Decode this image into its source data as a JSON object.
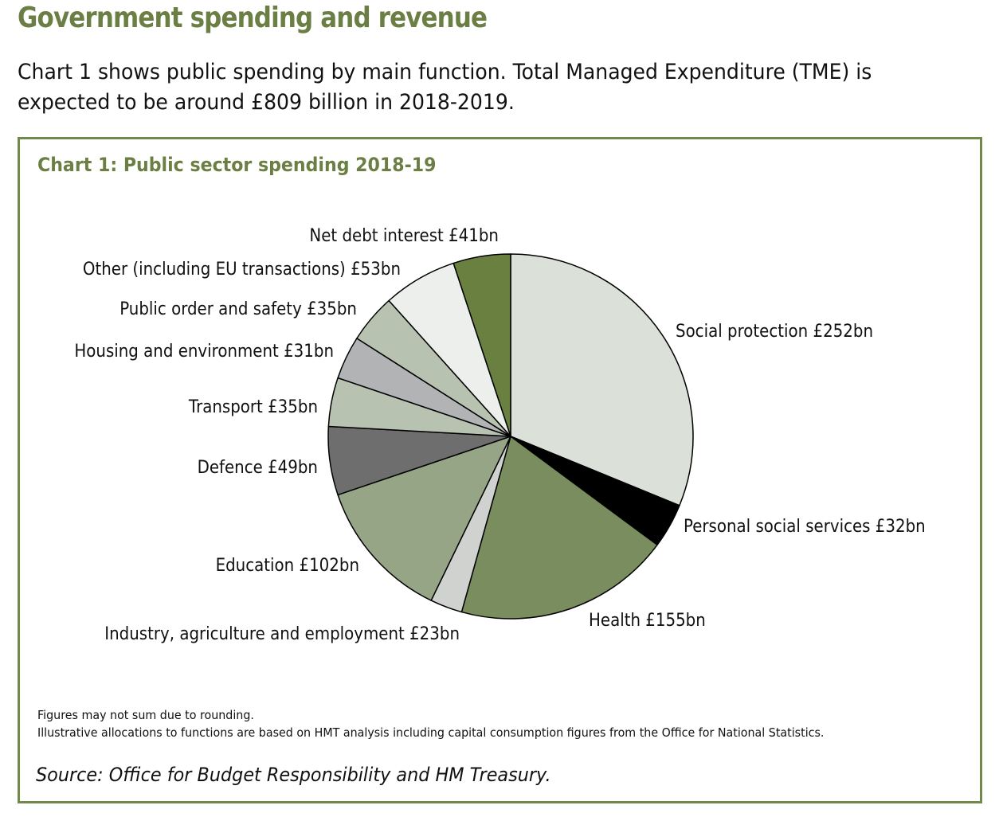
{
  "page": {
    "heading": "Government spending and revenue",
    "intro": "Chart 1 shows public spending by main function. Total Managed Expenditure (TME) is expected to be around £809 billion in 2018-2019."
  },
  "notes": {
    "rounding": "Figures may not sum due to rounding.",
    "allocations": "Illustrative allocations to functions are based on HMT analysis including capital consumption figures from the Office for National Statistics.",
    "source": "Source: Office for Budget Responsibility and HM Treasury."
  },
  "colors": {
    "accent": "#6b7f44",
    "border": "#718a4c"
  },
  "chart_data": {
    "type": "pie",
    "title": "Chart 1: Public sector spending 2018-19",
    "unit": "£bn",
    "start_angle": "12 o'clock",
    "direction": "clockwise",
    "slices": [
      {
        "name": "Social protection",
        "value": 252,
        "label": "Social protection £252bn",
        "color": "#dbe0d8"
      },
      {
        "name": "Personal social services",
        "value": 32,
        "label": "Personal social services £32bn",
        "color": "#000000"
      },
      {
        "name": "Health",
        "value": 155,
        "label": "Health £155bn",
        "color": "#7a8d5e"
      },
      {
        "name": "Industry, agriculture and employment",
        "value": 23,
        "label": "Industry, agriculture and employment £23bn",
        "color": "#d0d2d0"
      },
      {
        "name": "Education",
        "value": 102,
        "label": "Education £102bn",
        "color": "#96a585"
      },
      {
        "name": "Defence",
        "value": 49,
        "label": "Defence £49bn",
        "color": "#6e6e6e"
      },
      {
        "name": "Transport",
        "value": 35,
        "label": "Transport £35bn",
        "color": "#b8c2b0"
      },
      {
        "name": "Housing and environment",
        "value": 31,
        "label": "Housing and environment £31bn",
        "color": "#b2b3b5"
      },
      {
        "name": "Public order and safety",
        "value": 35,
        "label": "Public order and safety £35bn",
        "color": "#b8c2b0"
      },
      {
        "name": "Other (including EU transactions)",
        "value": 53,
        "label": "Other (including EU transactions) £53bn",
        "color": "#ecefec"
      },
      {
        "name": "Net debt interest",
        "value": 41,
        "label": "Net debt interest £41bn",
        "color": "#6a8040"
      }
    ]
  }
}
